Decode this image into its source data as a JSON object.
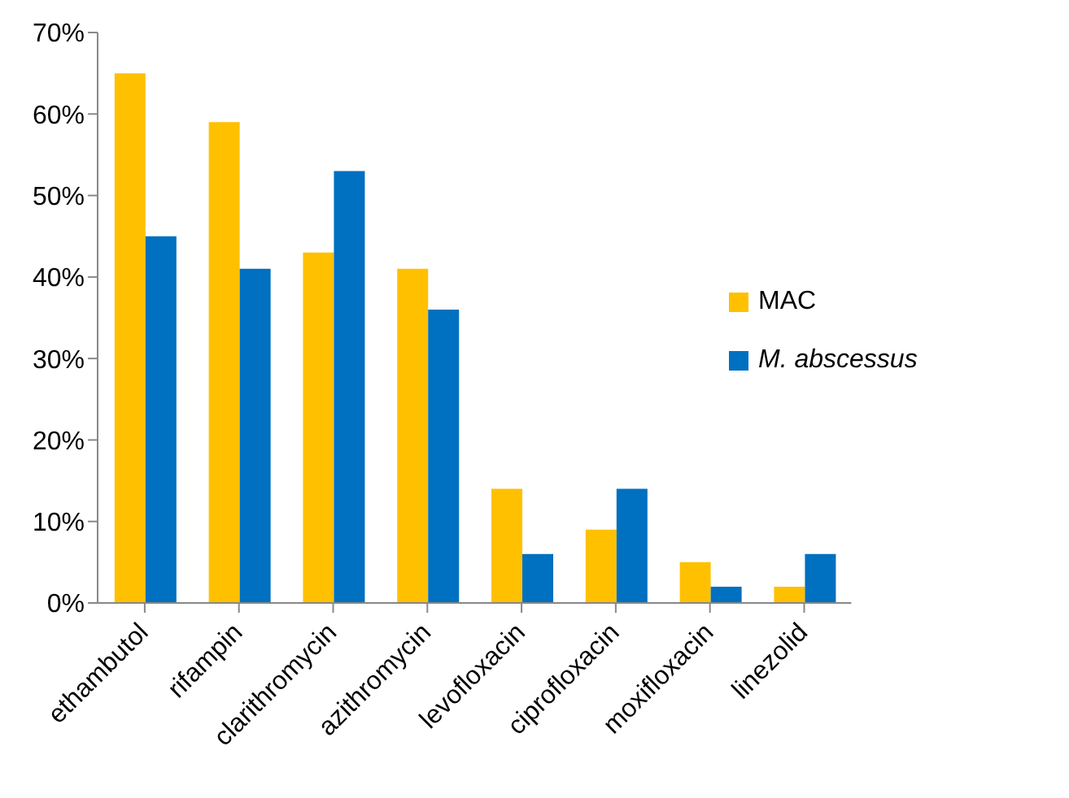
{
  "chart_data": {
    "type": "bar",
    "categories": [
      "ethambutol",
      "rifampin",
      "clarithromycin",
      "azithromycin",
      "levofloxacin",
      "ciprofloxacin",
      "moxifloxacin",
      "linezolid"
    ],
    "series": [
      {
        "name": "MAC",
        "color": "#ffc000",
        "values": [
          65,
          59,
          43,
          41,
          14,
          9,
          5,
          2
        ]
      },
      {
        "name": "M. abscessus",
        "color": "#0070c0",
        "values": [
          45,
          41,
          53,
          36,
          6,
          14,
          2,
          6
        ]
      }
    ],
    "ylim": [
      0,
      70
    ],
    "yticks": [
      {
        "value": 0,
        "label": "0%"
      },
      {
        "value": 10,
        "label": "10%"
      },
      {
        "value": 20,
        "label": "20%"
      },
      {
        "value": 30,
        "label": "30%"
      },
      {
        "value": 40,
        "label": "40%"
      },
      {
        "value": 50,
        "label": "50%"
      },
      {
        "value": 60,
        "label": "60%"
      },
      {
        "value": 70,
        "label": "70%"
      }
    ],
    "grid": false,
    "legend": "right"
  }
}
